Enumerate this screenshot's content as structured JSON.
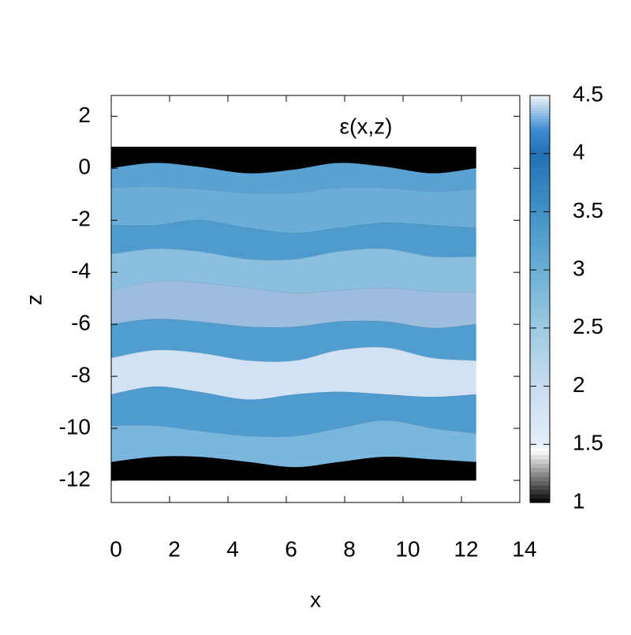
{
  "chart_data": {
    "type": "layers",
    "title": "ε(x,z)",
    "x_label": "x",
    "y_label": "z",
    "xlim": [
      0,
      14
    ],
    "ylim": [
      -12.85,
      2.8
    ],
    "xticks": [
      0,
      2,
      4,
      6,
      8,
      10,
      12,
      14
    ],
    "yticks": [
      -12,
      -10,
      -8,
      -6,
      -4,
      -2,
      0,
      2
    ],
    "x": [
      0,
      1.5,
      3,
      4.7,
      6.3,
      7.8,
      9.4,
      11,
      12.5
    ],
    "boundaries": [
      [
        0.82,
        0.82,
        0.82,
        0.82,
        0.82,
        0.82,
        0.82,
        0.82,
        0.82
      ],
      [
        0,
        0.2,
        0.05,
        -0.2,
        -0.05,
        0.2,
        0.05,
        -0.2,
        0
      ],
      [
        -0.75,
        -0.7,
        -0.8,
        -0.95,
        -0.95,
        -0.75,
        -0.75,
        -0.9,
        -0.8
      ],
      [
        -2.2,
        -2.2,
        -2.0,
        -2.3,
        -2.5,
        -2.3,
        -2.1,
        -2.2,
        -2.3
      ],
      [
        -3.3,
        -3.1,
        -3.2,
        -3.5,
        -3.5,
        -3.2,
        -3.1,
        -3.4,
        -3.4
      ],
      [
        -4.7,
        -4.35,
        -4.4,
        -4.6,
        -4.8,
        -4.7,
        -4.6,
        -4.75,
        -4.75
      ],
      [
        -6.0,
        -5.8,
        -5.9,
        -6.1,
        -6.1,
        -5.9,
        -5.9,
        -6.15,
        -6.0
      ],
      [
        -7.3,
        -7.0,
        -7.1,
        -7.4,
        -7.4,
        -7.0,
        -6.9,
        -7.3,
        -7.4
      ],
      [
        -8.7,
        -8.4,
        -8.6,
        -8.9,
        -8.7,
        -8.6,
        -8.7,
        -8.8,
        -8.7
      ],
      [
        -9.9,
        -9.9,
        -10.1,
        -10.3,
        -10.3,
        -10.0,
        -9.7,
        -10.0,
        -10.2
      ],
      [
        -11.3,
        -11.1,
        -11.1,
        -11.3,
        -11.5,
        -11.3,
        -11.1,
        -11.2,
        -11.3
      ],
      [
        -12,
        -12,
        -12,
        -12,
        -12,
        -12,
        -12,
        -12,
        -12
      ]
    ],
    "layers": [
      {
        "value": 1,
        "color": "#000000"
      },
      {
        "value": 3.3,
        "color": "#5aa2d3"
      },
      {
        "value": 3.0,
        "color": "#6aaed8"
      },
      {
        "value": 3.4,
        "color": "#4f9bd0"
      },
      {
        "value": 2.6,
        "color": "#8bbfe0"
      },
      {
        "value": 2.3,
        "color": "#9dbddf"
      },
      {
        "value": 3.4,
        "color": "#529dd0"
      },
      {
        "value": 1.8,
        "color": "#d0e2f3"
      },
      {
        "value": 3.4,
        "color": "#4f9bd0"
      },
      {
        "value": 2.8,
        "color": "#7ab6de"
      },
      {
        "value": 1,
        "color": "#000000"
      }
    ],
    "clim": [
      1,
      4.5
    ],
    "cticks": [
      1,
      1.5,
      2,
      2.5,
      3,
      3.5,
      4,
      4.5
    ],
    "palette": [
      {
        "value": 1,
        "color": "#000000"
      },
      {
        "value": 1.45,
        "color": "#ffffff"
      },
      {
        "value": 1.5,
        "color": "#e6eef8"
      },
      {
        "value": 2,
        "color": "#c8dcf0"
      },
      {
        "value": 2.5,
        "color": "#9ecae1"
      },
      {
        "value": 3,
        "color": "#6baed6"
      },
      {
        "value": 3.5,
        "color": "#4292c6"
      },
      {
        "value": 4,
        "color": "#2171b5"
      },
      {
        "value": 4.2,
        "color": "#3a8ad0"
      },
      {
        "value": 4.5,
        "color": "#f0f4fa"
      }
    ]
  }
}
